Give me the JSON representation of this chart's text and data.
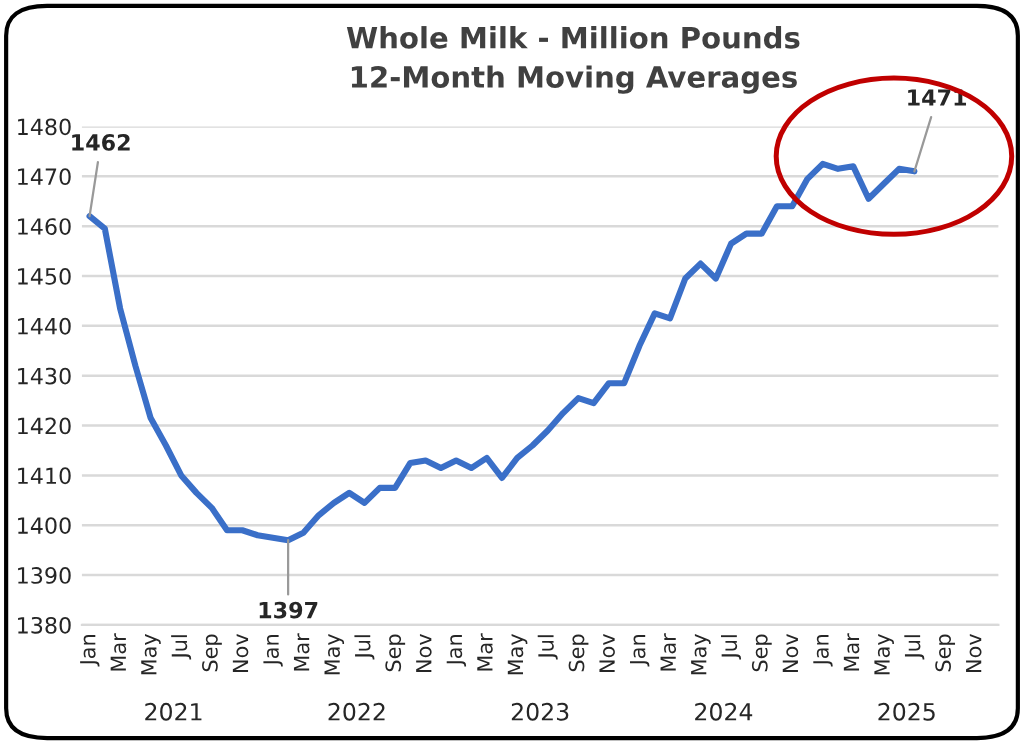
{
  "chart_data": {
    "type": "line",
    "title": "Whole Milk - Million Pounds",
    "subtitle": "12-Month Moving Averages",
    "categories": [
      "Jan",
      null,
      "Mar",
      null,
      "May",
      null,
      "Jul",
      null,
      "Sep",
      null,
      "Nov",
      null,
      "Jan",
      null,
      "Mar",
      null,
      "May",
      null,
      "Jul",
      null,
      "Sep",
      null,
      "Nov",
      null,
      "Jan",
      null,
      "Mar",
      null,
      "May",
      null,
      "Jul",
      null,
      "Sep",
      null,
      "Nov",
      null,
      "Jan",
      null,
      "Mar",
      null,
      "May",
      null,
      "Jul",
      null,
      "Sep",
      null,
      "Nov",
      null,
      "Jan",
      null,
      "Mar",
      null,
      "May",
      null,
      "Jul",
      null,
      "Sep",
      null,
      "Nov",
      null
    ],
    "series": [
      {
        "color": "#3a6fc8",
        "values": [
          1462,
          1459.5,
          1443.5,
          1432,
          1421.5,
          1416,
          1410,
          1406.5,
          1403.5,
          1399,
          1399,
          1398,
          1397.5,
          1397,
          1398.5,
          1402,
          1404.5,
          1406.5,
          1404.5,
          1407.5,
          1407.5,
          1412.5,
          1413,
          1411.5,
          1413,
          1411.5,
          1413.5,
          1409.5,
          1413.5,
          1416,
          1419,
          1422.5,
          1425.5,
          1424.5,
          1428.5,
          1428.5,
          1436,
          1442.5,
          1441.5,
          1449.5,
          1452.5,
          1449.5,
          1456.5,
          1458.5,
          1458.5,
          1464,
          1464,
          1469.5,
          1472.5,
          1471.5,
          1472,
          1465.5,
          1468.5,
          1471.5,
          1471,
          null,
          null,
          null,
          null,
          null
        ],
        "value_labels": [
          "1462",
          null,
          null,
          null,
          null,
          null,
          null,
          null,
          null,
          null,
          null,
          null,
          null,
          "1397",
          null,
          null,
          null,
          null,
          null,
          null,
          null,
          null,
          null,
          null,
          null,
          null,
          null,
          null,
          null,
          null,
          null,
          null,
          null,
          null,
          null,
          null,
          null,
          null,
          null,
          null,
          null,
          null,
          null,
          null,
          null,
          null,
          null,
          null,
          null,
          null,
          null,
          null,
          null,
          null,
          "1471",
          null,
          null,
          null,
          null,
          null
        ]
      }
    ],
    "ylim": [
      1380,
      1480
    ],
    "yticks": [
      1380,
      1390,
      1400,
      1410,
      1420,
      1430,
      1440,
      1450,
      1460,
      1470,
      1480
    ],
    "grid": "y",
    "legend": false,
    "marker": "none",
    "line_style": "solid",
    "annotations": [
      "2021",
      "2022",
      "2023",
      "2024",
      "2025"
    ]
  }
}
